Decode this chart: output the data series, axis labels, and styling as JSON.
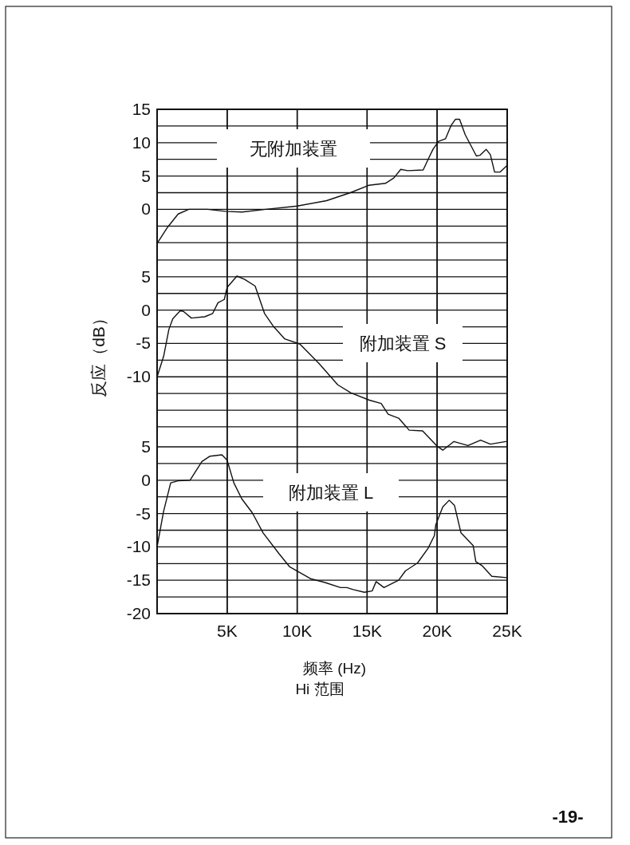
{
  "chart_data": [
    {
      "type": "line",
      "xlim": [
        0,
        25000
      ],
      "xticks": [
        {
          "value": 5000,
          "label": null
        },
        {
          "value": 10000,
          "label": null
        },
        {
          "value": 15000,
          "label": null
        },
        {
          "value": 20000,
          "label": null
        },
        {
          "value": 25000,
          "label": null
        }
      ],
      "tick_labels": "y",
      "grid": true,
      "ylim": [
        -60.6,
        15
      ],
      "yticks": [
        15,
        {
          "value": 12.5,
          "label": null
        },
        10,
        {
          "value": 7.5,
          "label": null
        },
        5,
        {
          "value": 2.5,
          "label": null
        },
        0,
        {
          "value": -2.5,
          "label": null
        },
        {
          "value": -5,
          "label": null
        }
      ],
      "x": [
        0,
        740,
        1500,
        2260,
        3600,
        4900,
        6050,
        7750,
        10000,
        12100,
        13800,
        15100,
        16300,
        16900,
        17400,
        17900,
        19000,
        19400,
        19700,
        20100,
        20600,
        21000,
        21300,
        21600,
        22000,
        22800,
        23050,
        23500,
        23800,
        24100,
        24500,
        25000
      ],
      "series": [
        {
          "name": "无附加装置",
          "color": "#111111",
          "values": [
            -5.1,
            -2.7,
            -0.7,
            0,
            0,
            -0.3,
            -0.4,
            0,
            0.5,
            1.3,
            2.5,
            3.6,
            3.9,
            4.7,
            6.0,
            5.8,
            5.9,
            7.7,
            9.0,
            10.2,
            10.6,
            12.6,
            13.5,
            13.5,
            11.2,
            8.0,
            8.1,
            9.0,
            8.2,
            5.6,
            5.6,
            6.6
          ]
        }
      ]
    },
    {
      "type": "line",
      "xlim": [
        0,
        25000
      ],
      "xticks": [
        {
          "value": 5000,
          "label": null
        },
        {
          "value": 10000,
          "label": null
        },
        {
          "value": 15000,
          "label": null
        },
        {
          "value": 20000,
          "label": null
        },
        {
          "value": 25000,
          "label": null
        }
      ],
      "tick_labels": "y",
      "grid": true,
      "ylim": [
        -45.5,
        30.1
      ],
      "yticks": [
        {
          "value": 7.5,
          "label": null
        },
        5,
        {
          "value": 2.5,
          "label": null
        },
        0,
        {
          "value": -2.5,
          "label": null
        },
        -5,
        {
          "value": -7.5,
          "label": null
        },
        -10,
        {
          "value": -12.5,
          "label": null
        },
        {
          "value": -15,
          "label": null
        },
        {
          "value": -17.5,
          "label": null
        }
      ],
      "ylabel": "反应（dB）",
      "x": [
        0,
        470,
        840,
        1120,
        1650,
        1880,
        2450,
        3400,
        3970,
        4350,
        4800,
        5000,
        5700,
        6250,
        7000,
        7670,
        8330,
        9100,
        10200,
        11560,
        12900,
        13840,
        15160,
        16000,
        16500,
        17250,
        18000,
        18960,
        20000,
        20400,
        21200,
        22200,
        23100,
        23800,
        24900
      ],
      "series": [
        {
          "name": "附加装置 S",
          "color": "#111111",
          "values": [
            -10,
            -6.9,
            -2.9,
            -1.3,
            -0.1,
            -0.2,
            -1.2,
            -1.0,
            -0.5,
            1.1,
            1.6,
            3.4,
            5.1,
            4.6,
            3.6,
            -0.5,
            -2.5,
            -4.3,
            -5.1,
            -8.0,
            -11.2,
            -12.4,
            -13.5,
            -14.0,
            -15.6,
            -16.2,
            -18.0,
            -18.1,
            -20.4,
            -21.0,
            -19.7,
            -20.3,
            -19.5,
            -20.1,
            -19.7
          ]
        }
      ]
    },
    {
      "type": "line",
      "xlim": [
        0,
        25000
      ],
      "xticks": [
        {
          "value": 5000,
          "label": "5K"
        },
        {
          "value": 10000,
          "label": "10K"
        },
        {
          "value": 15000,
          "label": "15K"
        },
        {
          "value": 20000,
          "label": "20K"
        },
        {
          "value": 25000,
          "label": "25K"
        }
      ],
      "grid": true,
      "ylim": [
        -20,
        55.6
      ],
      "yticks": [
        5,
        {
          "value": 2.5,
          "label": null
        },
        0,
        {
          "value": -2.5,
          "label": null
        },
        -5,
        {
          "value": -7.5,
          "label": null
        },
        -10,
        {
          "value": -12.5,
          "label": null
        },
        -15,
        {
          "value": -17.5,
          "label": null
        },
        -20
      ],
      "xlabel": "频率 (Hz)",
      "annotations": [
        "Hi 范围",
        "-19-"
      ],
      "x": [
        0,
        460,
        970,
        1500,
        2350,
        3200,
        3780,
        4630,
        5000,
        5480,
        6050,
        6800,
        7570,
        8700,
        9470,
        11000,
        11940,
        13100,
        13550,
        14000,
        14800,
        15360,
        15640,
        16200,
        17250,
        17730,
        18600,
        19350,
        19800,
        19900,
        20400,
        20860,
        21240,
        21700,
        22570,
        22760,
        23200,
        23900,
        24940
      ],
      "series": [
        {
          "name": "附加装置 L",
          "color": "#111111",
          "values": [
            -10,
            -4.7,
            -0.4,
            -0.1,
            0,
            2.8,
            3.6,
            3.8,
            3.0,
            -0.4,
            -2.8,
            -4.9,
            -7.9,
            -11.0,
            -13.0,
            -14.8,
            -15.3,
            -16.1,
            -16.1,
            -16.4,
            -16.8,
            -16.6,
            -15.2,
            -16.1,
            -15.0,
            -13.6,
            -12.4,
            -10.2,
            -8.3,
            -6.7,
            -4.0,
            -3.0,
            -3.8,
            -7.9,
            -9.8,
            -12.2,
            -12.8,
            -14.4,
            -14.6
          ]
        }
      ]
    }
  ]
}
